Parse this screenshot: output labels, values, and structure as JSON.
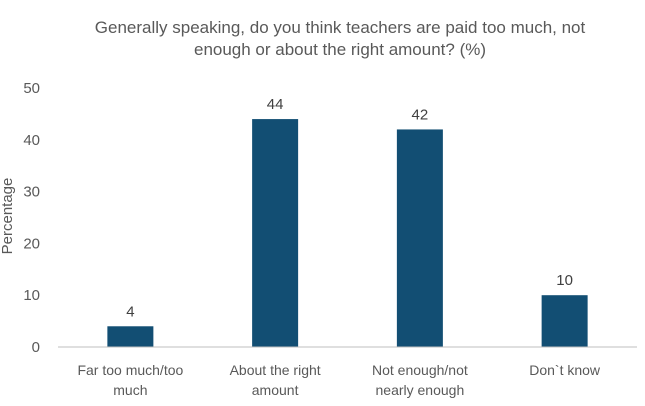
{
  "chart_data": {
    "type": "bar",
    "title_lines": [
      "Generally speaking, do you think teachers are paid too much, not",
      "enough or about the right amount? (%)"
    ],
    "categories": [
      [
        "Far too much/too",
        "much"
      ],
      [
        "About the right",
        "amount"
      ],
      [
        "Not enough/not",
        "nearly enough"
      ],
      [
        "Don`t know"
      ]
    ],
    "values": [
      4,
      44,
      42,
      10
    ],
    "data_labels": [
      "4",
      "44",
      "42",
      "10"
    ],
    "ylabel": "Percentage",
    "ylim": [
      0,
      50
    ],
    "yticks": [
      "0",
      "10",
      "20",
      "30",
      "40",
      "50"
    ],
    "grid": false,
    "bar_color": "#124E73",
    "legend": "none"
  }
}
